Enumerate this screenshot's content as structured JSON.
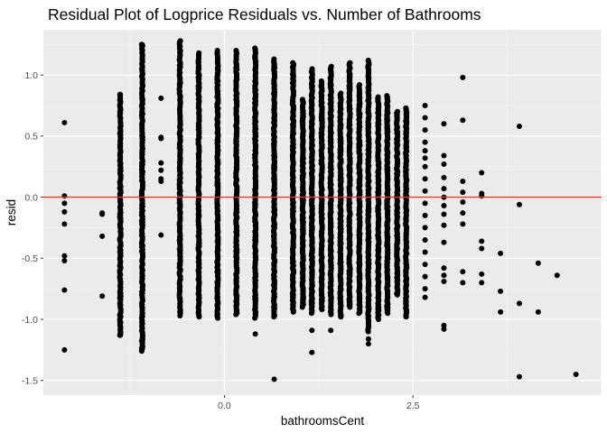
{
  "chart_data": {
    "type": "scatter",
    "title": "Residual Plot of Logprice Residuals vs. Number of Bathrooms",
    "xlabel": "bathroomsCent",
    "ylabel": "resid",
    "xlim": [
      -2.4,
      5.0
    ],
    "ylim": [
      -1.62,
      1.37
    ],
    "x_ticks": [
      0.0,
      2.5
    ],
    "x_tick_labels": [
      "0.0",
      "2.5"
    ],
    "y_ticks": [
      1.0,
      0.5,
      0.0,
      -0.5,
      -1.0,
      -1.5
    ],
    "y_tick_labels": [
      "1.0",
      "0.5",
      "0.0",
      "-0.5",
      "-1.0",
      "-1.5"
    ],
    "reference_line": {
      "y": 0,
      "color": "#e53935"
    },
    "grid": true,
    "panel_background": "#ebebeb",
    "point_color": "#000000",
    "columns": [
      {
        "x": -1.09,
        "min": -1.26,
        "max": 1.25
      },
      {
        "x": -0.59,
        "min": -0.97,
        "max": 1.28
      },
      {
        "x": -0.34,
        "min": -0.98,
        "max": 1.18
      },
      {
        "x": -0.09,
        "min": -0.99,
        "max": 1.2
      },
      {
        "x": 0.16,
        "min": -0.96,
        "max": 1.2
      },
      {
        "x": 0.41,
        "min": -0.99,
        "max": 1.22
      },
      {
        "x": 0.66,
        "min": -0.98,
        "max": 1.13
      },
      {
        "x": 0.91,
        "min": -0.94,
        "max": 1.1
      },
      {
        "x": 1.16,
        "min": -0.95,
        "max": 1.05
      },
      {
        "x": 1.41,
        "min": -0.96,
        "max": 1.07
      },
      {
        "x": 1.66,
        "min": -0.9,
        "max": 1.1
      },
      {
        "x": 1.91,
        "min": -1.1,
        "max": 1.12
      },
      {
        "x": 2.16,
        "min": -0.95,
        "max": 0.83
      },
      {
        "x": 2.41,
        "min": -0.98,
        "max": 0.73
      },
      {
        "x": -1.38,
        "min": -1.13,
        "max": 0.84
      },
      {
        "x": 1.04,
        "min": -0.9,
        "max": 0.8
      },
      {
        "x": 1.29,
        "min": -0.92,
        "max": 0.95
      },
      {
        "x": 1.54,
        "min": -0.98,
        "max": 0.85
      },
      {
        "x": 1.79,
        "min": -0.95,
        "max": 0.92
      },
      {
        "x": 2.04,
        "min": -1.0,
        "max": 0.82
      },
      {
        "x": 2.29,
        "min": -0.8,
        "max": 0.7
      }
    ],
    "points": [
      [
        -2.12,
        0.61
      ],
      [
        -2.12,
        -0.12
      ],
      [
        -2.12,
        -0.22
      ],
      [
        -2.12,
        -0.05
      ],
      [
        -2.12,
        0.01
      ],
      [
        -2.12,
        -0.48
      ],
      [
        -2.12,
        -0.52
      ],
      [
        -2.12,
        -0.76
      ],
      [
        -2.12,
        -1.25
      ],
      [
        -1.62,
        -0.13
      ],
      [
        -1.62,
        -0.14
      ],
      [
        -1.62,
        -0.32
      ],
      [
        -1.62,
        -0.81
      ],
      [
        -0.84,
        0.81
      ],
      [
        -0.84,
        0.49
      ],
      [
        -0.84,
        0.48
      ],
      [
        -0.84,
        0.28
      ],
      [
        -0.84,
        0.22
      ],
      [
        -0.84,
        0.15
      ],
      [
        -0.84,
        0.13
      ],
      [
        -0.84,
        -0.31
      ],
      [
        -1.38,
        -1.13
      ],
      [
        -1.38,
        -1.08
      ],
      [
        -1.38,
        -1.04
      ],
      [
        -1.38,
        0.84
      ],
      [
        -1.38,
        0.72
      ],
      [
        0.41,
        -1.12
      ],
      [
        0.66,
        -1.49
      ],
      [
        1.16,
        -1.27
      ],
      [
        1.16,
        -1.09
      ],
      [
        1.41,
        -1.09
      ],
      [
        1.91,
        -1.2
      ],
      [
        1.91,
        -1.16
      ],
      [
        2.66,
        0.75
      ],
      [
        2.66,
        0.55
      ],
      [
        2.66,
        0.45
      ],
      [
        2.66,
        0.38
      ],
      [
        2.66,
        0.32
      ],
      [
        2.66,
        0.25
      ],
      [
        2.66,
        0.15
      ],
      [
        2.66,
        0.05
      ],
      [
        2.66,
        -0.05
      ],
      [
        2.66,
        -0.15
      ],
      [
        2.66,
        -0.25
      ],
      [
        2.66,
        -0.35
      ],
      [
        2.66,
        -0.45
      ],
      [
        2.66,
        -0.55
      ],
      [
        2.66,
        -0.65
      ],
      [
        2.66,
        -0.75
      ],
      [
        2.66,
        -0.82
      ],
      [
        2.66,
        0.65
      ],
      [
        2.91,
        0.6
      ],
      [
        2.91,
        0.34
      ],
      [
        2.91,
        0.27
      ],
      [
        2.91,
        0.16
      ],
      [
        2.91,
        0.07
      ],
      [
        2.91,
        0.0
      ],
      [
        2.91,
        -0.07
      ],
      [
        2.91,
        -0.14
      ],
      [
        2.91,
        -0.23
      ],
      [
        2.91,
        -0.37
      ],
      [
        2.91,
        -0.58
      ],
      [
        2.91,
        -0.64
      ],
      [
        2.91,
        -0.69
      ],
      [
        2.91,
        -1.05
      ],
      [
        2.91,
        -1.08
      ],
      [
        3.16,
        0.98
      ],
      [
        3.16,
        0.63
      ],
      [
        3.16,
        0.13
      ],
      [
        3.16,
        0.04
      ],
      [
        3.16,
        -0.04
      ],
      [
        3.16,
        -0.13
      ],
      [
        3.16,
        -0.22
      ],
      [
        3.16,
        -0.61
      ],
      [
        3.16,
        -0.7
      ],
      [
        3.41,
        0.2
      ],
      [
        3.41,
        0.03
      ],
      [
        3.41,
        0.01
      ],
      [
        3.41,
        -0.36
      ],
      [
        3.41,
        -0.42
      ],
      [
        3.41,
        -0.63
      ],
      [
        3.41,
        -0.7
      ],
      [
        3.66,
        -0.46
      ],
      [
        3.66,
        -0.77
      ],
      [
        3.66,
        -0.94
      ],
      [
        3.91,
        0.58
      ],
      [
        3.91,
        -0.06
      ],
      [
        3.91,
        -0.87
      ],
      [
        3.91,
        -1.47
      ],
      [
        4.16,
        -0.54
      ],
      [
        4.16,
        -0.94
      ],
      [
        4.41,
        -0.64
      ],
      [
        4.66,
        -1.45
      ]
    ]
  }
}
